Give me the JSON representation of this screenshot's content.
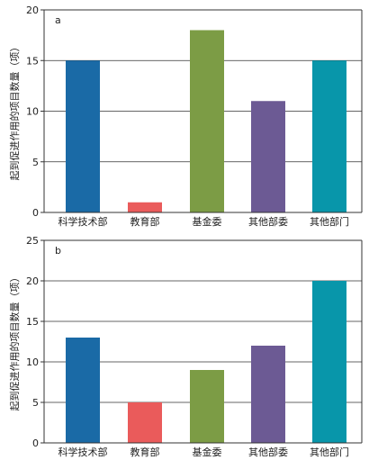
{
  "chart_data": [
    {
      "type": "bar",
      "panel_label": "a",
      "ylabel": "起到促进作用的项目数量（项）",
      "categories": [
        "科学技术部",
        "教育部",
        "基金委",
        "其他部委",
        "其他部门"
      ],
      "values": [
        15,
        1,
        18,
        11,
        15
      ],
      "ylim": [
        0,
        20
      ],
      "yticks": [
        0,
        5,
        10,
        15,
        20
      ],
      "grid": true,
      "legend": "none"
    },
    {
      "type": "bar",
      "panel_label": "b",
      "ylabel": "起到促进作用的项目数量（项）",
      "categories": [
        "科学技术部",
        "教育部",
        "基金委",
        "其他部委",
        "其他部门"
      ],
      "values": [
        13,
        5,
        9,
        12,
        20
      ],
      "ylim": [
        0,
        25
      ],
      "yticks": [
        0,
        5,
        10,
        15,
        20,
        25
      ],
      "grid": true,
      "legend": "none"
    }
  ],
  "colors": [
    "#1a6aa6",
    "#ea5b5b",
    "#7c9c45",
    "#6c5a94",
    "#0896aa"
  ]
}
